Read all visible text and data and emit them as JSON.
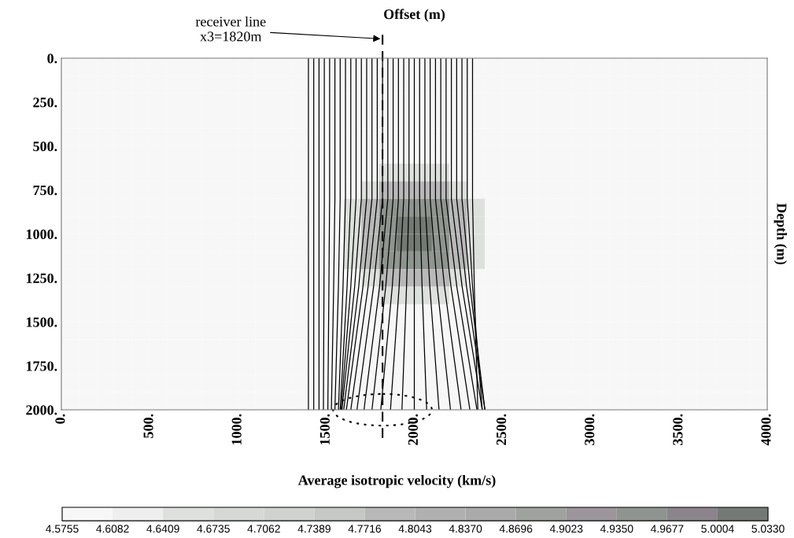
{
  "chart_data": {
    "type": "heatmap",
    "xlabel": "Offset (m)",
    "ylabel": "Depth (m)",
    "clabel": "Average isotropic velocity (km/s)",
    "xlim": [
      0,
      4000
    ],
    "ylim": [
      2000,
      0
    ],
    "xticks": [
      {
        "value": 0,
        "label": "0."
      },
      {
        "value": 500,
        "label": "500."
      },
      {
        "value": 1000,
        "label": "1000."
      },
      {
        "value": 1500,
        "label": "1500."
      },
      {
        "value": 2000,
        "label": "2000."
      },
      {
        "value": 2500,
        "label": "2500."
      },
      {
        "value": 3000,
        "label": "3000."
      },
      {
        "value": 3500,
        "label": "3500."
      },
      {
        "value": 4000,
        "label": "4000."
      }
    ],
    "yticks": [
      {
        "value": 0,
        "label": "0."
      },
      {
        "value": 250,
        "label": "250."
      },
      {
        "value": 500,
        "label": "500."
      },
      {
        "value": 750,
        "label": "750."
      },
      {
        "value": 1000,
        "label": "1000."
      },
      {
        "value": 1250,
        "label": "1250."
      },
      {
        "value": 1500,
        "label": "1500."
      },
      {
        "value": 1750,
        "label": "1750."
      },
      {
        "value": 2000,
        "label": "2000."
      }
    ],
    "clim": [
      4.5755,
      5.033
    ],
    "cticks": [
      4.5755,
      4.6082,
      4.6409,
      4.6735,
      4.7062,
      4.7389,
      4.7716,
      4.8043,
      {
        "value": 4.837,
        "label": "4.8370"
      },
      4.8696,
      4.9023,
      {
        "value": 4.935,
        "label": "4.9350"
      },
      4.9677,
      5.0004,
      {
        "value": 5.033,
        "label": "5.0330"
      }
    ],
    "colors": [
      "#f7f7f7",
      "#eeeeee",
      "#dde0dd",
      "#d5d9d5",
      "#cfd3cf",
      "#c5c9c5",
      "#b8b8b8",
      "#b0b0b0",
      "#aaaaaa",
      "#9ea39e",
      "#9c959c",
      "#8e948e",
      "#8c848c",
      "#737a73"
    ],
    "cells": [
      [
        4.59,
        4.59,
        4.59,
        4.59,
        4.59,
        4.59,
        4.59,
        4.59,
        4.59,
        4.59,
        4.59,
        4.59,
        4.59,
        4.59,
        4.59,
        4.59,
        4.59,
        4.59,
        4.59,
        4.59,
        4.59,
        4.59,
        4.59,
        4.59,
        4.59,
        4.59,
        4.59,
        4.59,
        4.59,
        4.59,
        4.59,
        4.59,
        4.59,
        4.59,
        4.59,
        4.59,
        4.59,
        4.59,
        4.59,
        4.59
      ],
      [
        4.59,
        4.59,
        4.59,
        4.59,
        4.59,
        4.59,
        4.59,
        4.59,
        4.59,
        4.59,
        4.59,
        4.59,
        4.59,
        4.59,
        4.59,
        4.59,
        4.59,
        4.59,
        4.59,
        4.59,
        4.59,
        4.59,
        4.59,
        4.59,
        4.59,
        4.59,
        4.59,
        4.59,
        4.59,
        4.59,
        4.59,
        4.59,
        4.59,
        4.59,
        4.59,
        4.59,
        4.59,
        4.59,
        4.59,
        4.59
      ],
      [
        4.59,
        4.59,
        4.59,
        4.59,
        4.59,
        4.59,
        4.59,
        4.59,
        4.59,
        4.59,
        4.59,
        4.59,
        4.59,
        4.59,
        4.59,
        4.59,
        4.59,
        4.59,
        4.59,
        4.59,
        4.59,
        4.59,
        4.59,
        4.59,
        4.59,
        4.59,
        4.59,
        4.59,
        4.59,
        4.59,
        4.59,
        4.59,
        4.59,
        4.59,
        4.59,
        4.59,
        4.59,
        4.59,
        4.59,
        4.59
      ],
      [
        4.59,
        4.59,
        4.59,
        4.59,
        4.59,
        4.59,
        4.59,
        4.59,
        4.59,
        4.59,
        4.59,
        4.59,
        4.59,
        4.59,
        4.59,
        4.59,
        4.59,
        4.59,
        4.59,
        4.59,
        4.59,
        4.59,
        4.59,
        4.59,
        4.59,
        4.59,
        4.59,
        4.59,
        4.59,
        4.59,
        4.59,
        4.59,
        4.59,
        4.59,
        4.59,
        4.59,
        4.59,
        4.59,
        4.59,
        4.59
      ],
      [
        4.59,
        4.59,
        4.59,
        4.59,
        4.59,
        4.59,
        4.59,
        4.59,
        4.59,
        4.59,
        4.59,
        4.59,
        4.59,
        4.59,
        4.59,
        4.59,
        4.59,
        4.59,
        4.59,
        4.59,
        4.59,
        4.59,
        4.59,
        4.59,
        4.59,
        4.59,
        4.59,
        4.59,
        4.59,
        4.59,
        4.59,
        4.59,
        4.59,
        4.59,
        4.59,
        4.59,
        4.59,
        4.59,
        4.59,
        4.59
      ],
      [
        4.59,
        4.59,
        4.59,
        4.59,
        4.59,
        4.59,
        4.59,
        4.59,
        4.59,
        4.59,
        4.59,
        4.59,
        4.59,
        4.59,
        4.59,
        4.59,
        4.59,
        4.59,
        4.59,
        4.59,
        4.59,
        4.59,
        4.59,
        4.59,
        4.59,
        4.59,
        4.59,
        4.59,
        4.59,
        4.59,
        4.59,
        4.59,
        4.59,
        4.59,
        4.59,
        4.59,
        4.59,
        4.59,
        4.59,
        4.59
      ],
      [
        4.59,
        4.59,
        4.59,
        4.59,
        4.59,
        4.59,
        4.59,
        4.59,
        4.59,
        4.59,
        4.59,
        4.59,
        4.59,
        4.59,
        4.59,
        4.59,
        4.59,
        4.59,
        4.65,
        4.65,
        4.65,
        4.65,
        4.59,
        4.59,
        4.59,
        4.59,
        4.59,
        4.59,
        4.59,
        4.59,
        4.59,
        4.59,
        4.59,
        4.59,
        4.59,
        4.59,
        4.59,
        4.59,
        4.59,
        4.59
      ],
      [
        4.59,
        4.59,
        4.59,
        4.59,
        4.59,
        4.59,
        4.59,
        4.59,
        4.59,
        4.59,
        4.59,
        4.59,
        4.59,
        4.59,
        4.59,
        4.59,
        4.59,
        4.65,
        4.8,
        4.8,
        4.8,
        4.8,
        4.65,
        4.59,
        4.59,
        4.59,
        4.59,
        4.59,
        4.59,
        4.59,
        4.59,
        4.59,
        4.59,
        4.59,
        4.59,
        4.59,
        4.59,
        4.59,
        4.59,
        4.59
      ],
      [
        4.59,
        4.59,
        4.59,
        4.59,
        4.59,
        4.59,
        4.59,
        4.59,
        4.59,
        4.59,
        4.59,
        4.59,
        4.59,
        4.59,
        4.59,
        4.59,
        4.65,
        4.8,
        4.95,
        4.95,
        4.95,
        4.95,
        4.8,
        4.65,
        4.59,
        4.59,
        4.59,
        4.59,
        4.59,
        4.59,
        4.59,
        4.59,
        4.59,
        4.59,
        4.59,
        4.59,
        4.59,
        4.59,
        4.59,
        4.59
      ],
      [
        4.59,
        4.59,
        4.59,
        4.59,
        4.59,
        4.59,
        4.59,
        4.59,
        4.59,
        4.59,
        4.59,
        4.59,
        4.59,
        4.59,
        4.59,
        4.59,
        4.65,
        4.8,
        4.95,
        5.02,
        5.02,
        4.95,
        4.8,
        4.65,
        4.59,
        4.59,
        4.59,
        4.59,
        4.59,
        4.59,
        4.59,
        4.59,
        4.59,
        4.59,
        4.59,
        4.59,
        4.59,
        4.59,
        4.59,
        4.59
      ],
      [
        4.59,
        4.59,
        4.59,
        4.59,
        4.59,
        4.59,
        4.59,
        4.59,
        4.59,
        4.59,
        4.59,
        4.59,
        4.59,
        4.59,
        4.59,
        4.59,
        4.65,
        4.8,
        4.95,
        5.02,
        5.02,
        4.95,
        4.8,
        4.65,
        4.59,
        4.59,
        4.59,
        4.59,
        4.59,
        4.59,
        4.59,
        4.59,
        4.59,
        4.59,
        4.59,
        4.59,
        4.59,
        4.59,
        4.59,
        4.59
      ],
      [
        4.59,
        4.59,
        4.59,
        4.59,
        4.59,
        4.59,
        4.59,
        4.59,
        4.59,
        4.59,
        4.59,
        4.59,
        4.59,
        4.59,
        4.59,
        4.59,
        4.65,
        4.8,
        4.95,
        4.95,
        4.95,
        4.95,
        4.8,
        4.65,
        4.59,
        4.59,
        4.59,
        4.59,
        4.59,
        4.59,
        4.59,
        4.59,
        4.59,
        4.59,
        4.59,
        4.59,
        4.59,
        4.59,
        4.59,
        4.59
      ],
      [
        4.59,
        4.59,
        4.59,
        4.59,
        4.59,
        4.59,
        4.59,
        4.59,
        4.59,
        4.59,
        4.59,
        4.59,
        4.59,
        4.59,
        4.59,
        4.59,
        4.59,
        4.65,
        4.8,
        4.8,
        4.8,
        4.8,
        4.65,
        4.59,
        4.59,
        4.59,
        4.59,
        4.59,
        4.59,
        4.59,
        4.59,
        4.59,
        4.59,
        4.59,
        4.59,
        4.59,
        4.59,
        4.59,
        4.59,
        4.59
      ],
      [
        4.59,
        4.59,
        4.59,
        4.59,
        4.59,
        4.59,
        4.59,
        4.59,
        4.59,
        4.59,
        4.59,
        4.59,
        4.59,
        4.59,
        4.59,
        4.59,
        4.59,
        4.59,
        4.65,
        4.65,
        4.65,
        4.65,
        4.59,
        4.59,
        4.59,
        4.59,
        4.59,
        4.59,
        4.59,
        4.59,
        4.59,
        4.59,
        4.59,
        4.59,
        4.59,
        4.59,
        4.59,
        4.59,
        4.59,
        4.59
      ],
      [
        4.59,
        4.59,
        4.59,
        4.59,
        4.59,
        4.59,
        4.59,
        4.59,
        4.59,
        4.59,
        4.59,
        4.59,
        4.59,
        4.59,
        4.59,
        4.59,
        4.59,
        4.59,
        4.59,
        4.59,
        4.59,
        4.59,
        4.59,
        4.59,
        4.59,
        4.59,
        4.59,
        4.59,
        4.59,
        4.59,
        4.59,
        4.59,
        4.59,
        4.59,
        4.59,
        4.59,
        4.59,
        4.59,
        4.59,
        4.59
      ],
      [
        4.59,
        4.59,
        4.59,
        4.59,
        4.59,
        4.59,
        4.59,
        4.59,
        4.59,
        4.59,
        4.59,
        4.59,
        4.59,
        4.59,
        4.59,
        4.59,
        4.59,
        4.59,
        4.59,
        4.59,
        4.59,
        4.59,
        4.59,
        4.59,
        4.59,
        4.59,
        4.59,
        4.59,
        4.59,
        4.59,
        4.59,
        4.59,
        4.59,
        4.59,
        4.59,
        4.59,
        4.59,
        4.59,
        4.59,
        4.59
      ],
      [
        4.59,
        4.59,
        4.59,
        4.59,
        4.59,
        4.59,
        4.59,
        4.59,
        4.59,
        4.59,
        4.59,
        4.59,
        4.59,
        4.59,
        4.59,
        4.59,
        4.59,
        4.59,
        4.59,
        4.59,
        4.59,
        4.59,
        4.59,
        4.59,
        4.59,
        4.59,
        4.59,
        4.59,
        4.59,
        4.59,
        4.59,
        4.59,
        4.59,
        4.59,
        4.59,
        4.59,
        4.59,
        4.59,
        4.59,
        4.59
      ],
      [
        4.59,
        4.59,
        4.59,
        4.59,
        4.59,
        4.59,
        4.59,
        4.59,
        4.59,
        4.59,
        4.59,
        4.59,
        4.59,
        4.59,
        4.59,
        4.59,
        4.59,
        4.59,
        4.59,
        4.59,
        4.59,
        4.59,
        4.59,
        4.59,
        4.59,
        4.59,
        4.59,
        4.59,
        4.59,
        4.59,
        4.59,
        4.59,
        4.59,
        4.59,
        4.59,
        4.59,
        4.59,
        4.59,
        4.59,
        4.59
      ],
      [
        4.59,
        4.59,
        4.59,
        4.59,
        4.59,
        4.59,
        4.59,
        4.59,
        4.59,
        4.59,
        4.59,
        4.59,
        4.59,
        4.59,
        4.59,
        4.59,
        4.59,
        4.59,
        4.59,
        4.59,
        4.59,
        4.59,
        4.59,
        4.59,
        4.59,
        4.59,
        4.59,
        4.59,
        4.59,
        4.59,
        4.59,
        4.59,
        4.59,
        4.59,
        4.59,
        4.59,
        4.59,
        4.59,
        4.59,
        4.59
      ],
      [
        4.59,
        4.59,
        4.59,
        4.59,
        4.59,
        4.59,
        4.59,
        4.59,
        4.59,
        4.59,
        4.59,
        4.59,
        4.59,
        4.59,
        4.59,
        4.59,
        4.59,
        4.59,
        4.59,
        4.59,
        4.59,
        4.59,
        4.59,
        4.59,
        4.59,
        4.59,
        4.59,
        4.59,
        4.59,
        4.59,
        4.59,
        4.59,
        4.59,
        4.59,
        4.59,
        4.59,
        4.59,
        4.59,
        4.59,
        4.59
      ]
    ],
    "series": [
      {
        "type": "line",
        "color": "#000000",
        "x": [
          1400,
          1400,
          1400,
          1400
        ],
        "values": [
          0,
          800,
          1300,
          2000
        ]
      },
      {
        "type": "line",
        "color": "#000000",
        "x": [
          1430,
          1430,
          1430,
          1430
        ],
        "values": [
          0,
          800,
          1300,
          2000
        ]
      },
      {
        "type": "line",
        "color": "#000000",
        "x": [
          1460,
          1460,
          1460,
          1460
        ],
        "values": [
          0,
          800,
          1300,
          2000
        ]
      },
      {
        "type": "line",
        "color": "#000000",
        "x": [
          1490,
          1490,
          1488,
          1485
        ],
        "values": [
          0,
          800,
          1300,
          2000
        ]
      },
      {
        "type": "line",
        "color": "#000000",
        "x": [
          1520,
          1520,
          1516,
          1510
        ],
        "values": [
          0,
          800,
          1300,
          2000
        ]
      },
      {
        "type": "line",
        "color": "#000000",
        "x": [
          1550,
          1550,
          1543,
          1530
        ],
        "values": [
          0,
          800,
          1300,
          2000
        ]
      },
      {
        "type": "line",
        "color": "#000000",
        "x": [
          1580,
          1580,
          1570,
          1550
        ],
        "values": [
          0,
          800,
          1300,
          2000
        ]
      },
      {
        "type": "line",
        "color": "#000000",
        "x": [
          1610,
          1610,
          1596,
          1570
        ],
        "values": [
          0,
          800,
          1300,
          2000
        ]
      },
      {
        "type": "line",
        "color": "#000000",
        "x": [
          1640,
          1640,
          1619,
          1580
        ],
        "values": [
          0,
          800,
          1300,
          2000
        ]
      },
      {
        "type": "line",
        "color": "#000000",
        "x": [
          1670,
          1670,
          1640,
          1585
        ],
        "values": [
          0,
          800,
          1300,
          2000
        ]
      },
      {
        "type": "line",
        "color": "#000000",
        "x": [
          1700,
          1700,
          1662,
          1590
        ],
        "values": [
          0,
          800,
          1300,
          2000
        ]
      },
      {
        "type": "line",
        "color": "#000000",
        "x": [
          1730,
          1730,
          1685,
          1600
        ],
        "values": [
          0,
          800,
          1300,
          2000
        ]
      },
      {
        "type": "line",
        "color": "#000000",
        "x": [
          1760,
          1760,
          1709,
          1615
        ],
        "values": [
          0,
          800,
          1300,
          2000
        ]
      },
      {
        "type": "line",
        "color": "#000000",
        "x": [
          1790,
          1790,
          1738,
          1640
        ],
        "values": [
          0,
          800,
          1300,
          2000
        ]
      },
      {
        "type": "line",
        "color": "#000000",
        "x": [
          1820,
          1820,
          1769,
          1675
        ],
        "values": [
          0,
          800,
          1300,
          2000
        ]
      },
      {
        "type": "line",
        "color": "#000000",
        "x": [
          1850,
          1850,
          1803,
          1715
        ],
        "values": [
          0,
          800,
          1300,
          2000
        ]
      },
      {
        "type": "line",
        "color": "#000000",
        "x": [
          1880,
          1880,
          1838,
          1760
        ],
        "values": [
          0,
          800,
          1300,
          2000
        ]
      },
      {
        "type": "line",
        "color": "#000000",
        "x": [
          1910,
          1910,
          1875,
          1810
        ],
        "values": [
          0,
          800,
          1300,
          2000
        ]
      },
      {
        "type": "line",
        "color": "#000000",
        "x": [
          1940,
          1940,
          1914,
          1865
        ],
        "values": [
          0,
          800,
          1300,
          2000
        ]
      },
      {
        "type": "line",
        "color": "#000000",
        "x": [
          1970,
          1970,
          1956,
          1930
        ],
        "values": [
          0,
          800,
          1300,
          2000
        ]
      },
      {
        "type": "line",
        "color": "#000000",
        "x": [
          2000,
          2000,
          2000,
          2000
        ],
        "values": [
          0,
          800,
          1300,
          2000
        ]
      },
      {
        "type": "line",
        "color": "#000000",
        "x": [
          2030,
          2030,
          2044,
          2070
        ],
        "values": [
          0,
          800,
          1300,
          2000
        ]
      },
      {
        "type": "line",
        "color": "#000000",
        "x": [
          2060,
          2060,
          2088,
          2140
        ],
        "values": [
          0,
          800,
          1300,
          2000
        ]
      },
      {
        "type": "line",
        "color": "#000000",
        "x": [
          2090,
          2090,
          2130,
          2205
        ],
        "values": [
          0,
          800,
          1300,
          2000
        ]
      },
      {
        "type": "line",
        "color": "#000000",
        "x": [
          2120,
          2120,
          2171,
          2265
        ],
        "values": [
          0,
          800,
          1300,
          2000
        ]
      },
      {
        "type": "line",
        "color": "#000000",
        "x": [
          2150,
          2150,
          2208,
          2315
        ],
        "values": [
          0,
          800,
          1300,
          2000
        ]
      },
      {
        "type": "line",
        "color": "#000000",
        "x": [
          2180,
          2180,
          2241,
          2355
        ],
        "values": [
          0,
          800,
          1300,
          2000
        ]
      },
      {
        "type": "line",
        "color": "#000000",
        "x": [
          2210,
          2210,
          2271,
          2385
        ],
        "values": [
          0,
          800,
          1300,
          2000
        ]
      },
      {
        "type": "line",
        "color": "#000000",
        "x": [
          2240,
          2240,
          2296,
          2400
        ],
        "values": [
          0,
          800,
          1300,
          2000
        ]
      },
      {
        "type": "line",
        "color": "#000000",
        "x": [
          2270,
          2270,
          2316,
          2400
        ],
        "values": [
          0,
          800,
          1300,
          2000
        ]
      },
      {
        "type": "line",
        "color": "#000000",
        "x": [
          2300,
          2300,
          2330,
          2385
        ],
        "values": [
          0,
          800,
          1300,
          2000
        ]
      },
      {
        "type": "line",
        "color": "#000000",
        "x": [
          2330,
          2330,
          2340,
          2360
        ],
        "values": [
          0,
          800,
          1300,
          2000
        ]
      }
    ],
    "ref_lines": [
      {
        "axis": "x",
        "value": 1820,
        "label": "receiver line\nx3=1820m",
        "color": "#000000",
        "line_style": "dashed"
      }
    ]
  }
}
